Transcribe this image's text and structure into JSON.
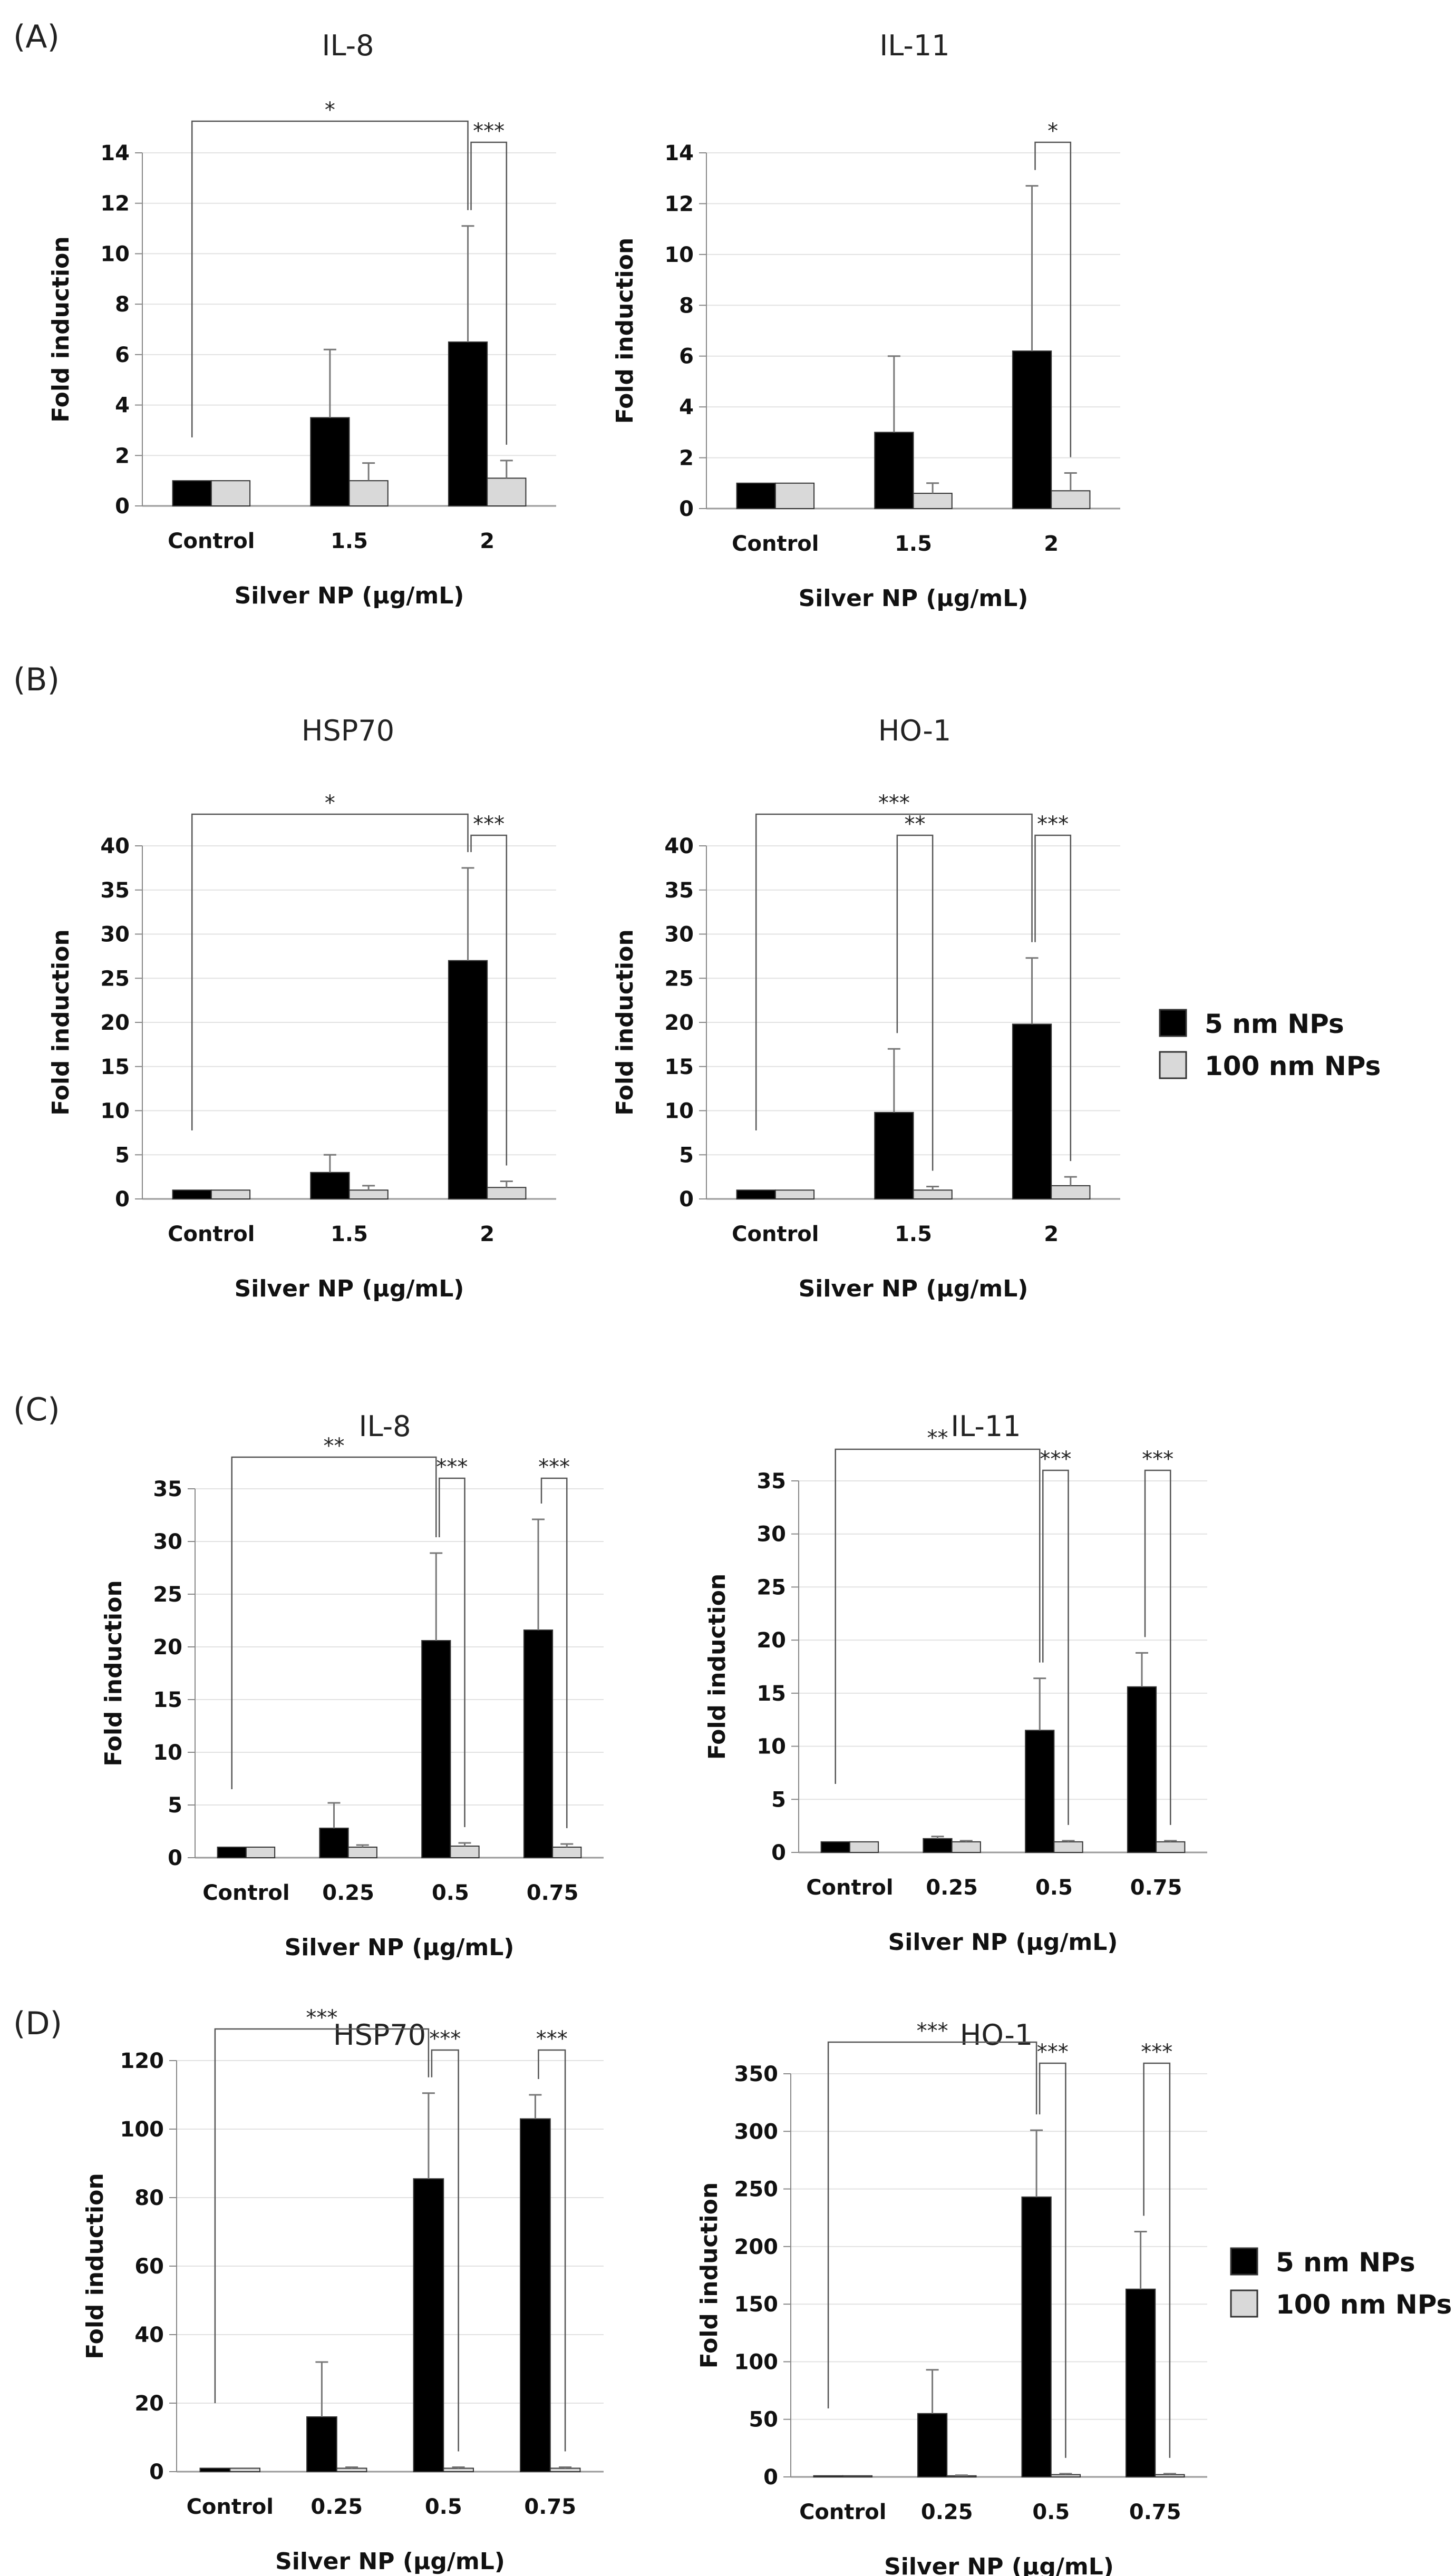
{
  "legend": [
    {
      "name": "5 nm NPs",
      "color": "#000000"
    },
    {
      "name": "100 nm NPs",
      "color": "#d9d9d9"
    }
  ],
  "chart_data": [
    {
      "panel": "(A)",
      "type": "bar",
      "title": "IL-8",
      "xlabel": "Silver NP (μg/mL)",
      "ylabel": "Fold induction",
      "categories": [
        "Control",
        "1.5",
        "2"
      ],
      "ylim": [
        0,
        14
      ],
      "yticks": [
        0,
        2,
        4,
        6,
        8,
        10,
        12,
        14
      ],
      "series": [
        {
          "name": "5 nm NPs",
          "values": [
            1.0,
            3.5,
            6.5
          ],
          "errors": [
            0,
            2.7,
            4.6
          ]
        },
        {
          "name": "100 nm NPs",
          "values": [
            1.0,
            1.0,
            1.1
          ],
          "errors": [
            0,
            0.7,
            0.7
          ]
        }
      ],
      "significance": [
        {
          "label": "*",
          "from": [
            0,
            0
          ],
          "to": [
            2,
            0
          ]
        },
        {
          "label": "***",
          "from": [
            2,
            0
          ],
          "to": [
            2,
            1
          ]
        }
      ]
    },
    {
      "panel": "",
      "type": "bar",
      "title": "IL-11",
      "xlabel": "Silver NP (μg/mL)",
      "ylabel": "Fold induction",
      "categories": [
        "Control",
        "1.5",
        "2"
      ],
      "ylim": [
        0,
        14
      ],
      "yticks": [
        0,
        2,
        4,
        6,
        8,
        10,
        12,
        14
      ],
      "series": [
        {
          "name": "5 nm NPs",
          "values": [
            1.0,
            3.0,
            6.2
          ],
          "errors": [
            0,
            3.0,
            6.5
          ]
        },
        {
          "name": "100 nm NPs",
          "values": [
            1.0,
            0.6,
            0.7
          ],
          "errors": [
            0,
            0.4,
            0.7
          ]
        }
      ],
      "significance": [
        {
          "label": "*",
          "from": [
            2,
            0
          ],
          "to": [
            2,
            1
          ]
        }
      ]
    },
    {
      "panel": "(B)",
      "type": "bar",
      "title": "HSP70",
      "xlabel": "Silver NP (μg/mL)",
      "ylabel": "Fold induction",
      "categories": [
        "Control",
        "1.5",
        "2"
      ],
      "ylim": [
        0,
        40
      ],
      "yticks": [
        0,
        5,
        10,
        15,
        20,
        25,
        30,
        35,
        40
      ],
      "series": [
        {
          "name": "5 nm NPs",
          "values": [
            1.0,
            3.0,
            27.0
          ],
          "errors": [
            0,
            2.0,
            10.5
          ]
        },
        {
          "name": "100 nm NPs",
          "values": [
            1.0,
            1.0,
            1.3
          ],
          "errors": [
            0,
            0.5,
            0.7
          ]
        }
      ],
      "significance": [
        {
          "label": "*",
          "from": [
            0,
            0
          ],
          "to": [
            2,
            0
          ]
        },
        {
          "label": "***",
          "from": [
            2,
            0
          ],
          "to": [
            2,
            1
          ]
        }
      ]
    },
    {
      "panel": "",
      "type": "bar",
      "title": "HO-1",
      "xlabel": "Silver NP (μg/mL)",
      "ylabel": "Fold induction",
      "categories": [
        "Control",
        "1.5",
        "2"
      ],
      "ylim": [
        0,
        40
      ],
      "yticks": [
        0,
        5,
        10,
        15,
        20,
        25,
        30,
        35,
        40
      ],
      "series": [
        {
          "name": "5 nm NPs",
          "values": [
            1.0,
            9.8,
            19.8
          ],
          "errors": [
            0,
            7.2,
            7.5
          ]
        },
        {
          "name": "100 nm NPs",
          "values": [
            1.0,
            1.0,
            1.5
          ],
          "errors": [
            0,
            0.4,
            1.0
          ]
        }
      ],
      "significance": [
        {
          "label": "***",
          "from": [
            0,
            0
          ],
          "to": [
            2,
            0
          ],
          "level": 2
        },
        {
          "label": "**",
          "from": [
            1,
            0
          ],
          "to": [
            1,
            1
          ],
          "level": 1
        },
        {
          "label": "***",
          "from": [
            2,
            0
          ],
          "to": [
            2,
            1
          ],
          "level": 1
        }
      ]
    },
    {
      "panel": "(C)",
      "type": "bar",
      "title": "IL-8",
      "xlabel": "Silver NP (μg/mL)",
      "ylabel": "Fold induction",
      "categories": [
        "Control",
        "0.25",
        "0.5",
        "0.75"
      ],
      "ylim": [
        0,
        35
      ],
      "yticks": [
        0,
        5,
        10,
        15,
        20,
        25,
        30,
        35
      ],
      "series": [
        {
          "name": "5 nm NPs",
          "values": [
            1.0,
            2.8,
            20.6,
            21.6
          ],
          "errors": [
            0,
            2.4,
            8.3,
            10.5
          ]
        },
        {
          "name": "100 nm NPs",
          "values": [
            1.0,
            1.0,
            1.1,
            1.0
          ],
          "errors": [
            0,
            0.2,
            0.3,
            0.3
          ]
        }
      ],
      "significance": [
        {
          "label": "**",
          "from": [
            0,
            0
          ],
          "to": [
            2,
            0
          ]
        },
        {
          "label": "***",
          "from": [
            2,
            0
          ],
          "to": [
            2,
            1
          ]
        },
        {
          "label": "***",
          "from": [
            3,
            0
          ],
          "to": [
            3,
            1
          ]
        }
      ]
    },
    {
      "panel": "",
      "type": "bar",
      "title": "IL-11",
      "xlabel": "Silver NP (μg/mL)",
      "ylabel": "Fold induction",
      "categories": [
        "Control",
        "0.25",
        "0.5",
        "0.75"
      ],
      "ylim": [
        0,
        35
      ],
      "yticks": [
        0,
        5,
        10,
        15,
        20,
        25,
        30,
        35
      ],
      "series": [
        {
          "name": "5 nm NPs",
          "values": [
            1.0,
            1.3,
            11.5,
            15.6
          ],
          "errors": [
            0,
            0.2,
            4.9,
            3.2
          ]
        },
        {
          "name": "100 nm NPs",
          "values": [
            1.0,
            1.0,
            1.0,
            1.0
          ],
          "errors": [
            0,
            0.1,
            0.1,
            0.1
          ]
        }
      ],
      "significance": [
        {
          "label": "**",
          "from": [
            0,
            0
          ],
          "to": [
            2,
            0
          ]
        },
        {
          "label": "***",
          "from": [
            2,
            0
          ],
          "to": [
            2,
            1
          ]
        },
        {
          "label": "***",
          "from": [
            3,
            0
          ],
          "to": [
            3,
            1
          ]
        }
      ]
    },
    {
      "panel": "(D)",
      "type": "bar",
      "title": "HSP70",
      "xlabel": "Silver NP (μg/mL)",
      "ylabel": "Fold induction",
      "categories": [
        "Control",
        "0.25",
        "0.5",
        "0.75"
      ],
      "ylim": [
        0,
        120
      ],
      "yticks": [
        0,
        20,
        40,
        60,
        80,
        100,
        120
      ],
      "series": [
        {
          "name": "5 nm NPs",
          "values": [
            1.0,
            16.0,
            85.5,
            103.0
          ],
          "errors": [
            0,
            16.0,
            25.0,
            7.0
          ]
        },
        {
          "name": "100 nm NPs",
          "values": [
            1.0,
            1.0,
            1.0,
            1.0
          ],
          "errors": [
            0,
            0.3,
            0.3,
            0.3
          ]
        }
      ],
      "significance": [
        {
          "label": "***",
          "from": [
            0,
            0
          ],
          "to": [
            2,
            0
          ]
        },
        {
          "label": "***",
          "from": [
            2,
            0
          ],
          "to": [
            2,
            1
          ]
        },
        {
          "label": "***",
          "from": [
            3,
            0
          ],
          "to": [
            3,
            1
          ]
        }
      ]
    },
    {
      "panel": "",
      "type": "bar",
      "title": "HO-1",
      "xlabel": "Silver NP (μg/mL)",
      "ylabel": "Fold induction",
      "categories": [
        "Control",
        "0.25",
        "0.5",
        "0.75"
      ],
      "ylim": [
        0,
        350
      ],
      "yticks": [
        0,
        50,
        100,
        150,
        200,
        250,
        300,
        350
      ],
      "series": [
        {
          "name": "5 nm NPs",
          "values": [
            1.0,
            55.0,
            243.0,
            163.0
          ],
          "errors": [
            0,
            38.0,
            58.0,
            50.0
          ]
        },
        {
          "name": "100 nm NPs",
          "values": [
            1.0,
            1.0,
            2.0,
            2.0
          ],
          "errors": [
            0,
            0.5,
            0.8,
            0.8
          ]
        }
      ],
      "significance": [
        {
          "label": "***",
          "from": [
            0,
            0
          ],
          "to": [
            2,
            0
          ]
        },
        {
          "label": "***",
          "from": [
            2,
            0
          ],
          "to": [
            2,
            1
          ]
        },
        {
          "label": "***",
          "from": [
            3,
            0
          ],
          "to": [
            3,
            1
          ]
        }
      ]
    }
  ]
}
